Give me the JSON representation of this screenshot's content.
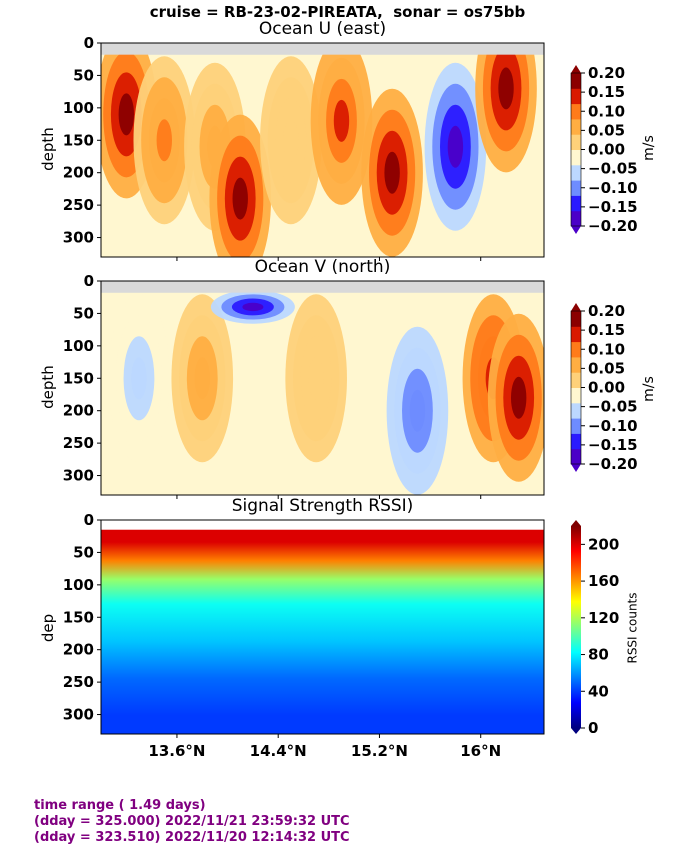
{
  "suptitle": "cruise = RB-23-02-PIREATA,  sonar = os75bb",
  "footer": {
    "line1": "time range ( 1.49 days)",
    "line2": "(dday = 325.000) 2022/11/21 23:59:32 UTC",
    "line3": "(dday = 323.510) 2022/11/20 12:14:32 UTC"
  },
  "colors": {
    "velocity_scale": [
      "#4b00c8",
      "#2a1aff",
      "#6e8cff",
      "#bcd8ff",
      "#fff7d0",
      "#fed17a",
      "#ffae42",
      "#ff7b1a",
      "#d91a00",
      "#8b0000"
    ],
    "no_data": "#d9d9d9"
  },
  "chart_data": [
    {
      "type": "heatmap",
      "title": "Ocean U (east)",
      "ylabel": "depth",
      "xlabel": "",
      "x_ticks": [
        "13.6°N",
        "14.4°N",
        "15.2°N",
        "16°N"
      ],
      "x_tick_values": [
        13.6,
        14.4,
        15.2,
        16.0
      ],
      "xlim": [
        13.0,
        16.5
      ],
      "y_ticks": [
        "0",
        "50",
        "100",
        "150",
        "200",
        "250",
        "300"
      ],
      "ylim": [
        330,
        0
      ],
      "colorbar": {
        "label": "m/s",
        "ticks": [
          "0.20",
          "0.15",
          "0.10",
          "0.05",
          "0.00",
          "−0.05",
          "−0.10",
          "−0.15",
          "−0.20"
        ],
        "range": [
          -0.2,
          0.2
        ]
      },
      "features": [
        {
          "x": 13.2,
          "y": 110,
          "value": 0.18
        },
        {
          "x": 13.5,
          "y": 150,
          "value": 0.08
        },
        {
          "x": 13.9,
          "y": 160,
          "value": 0.06
        },
        {
          "x": 14.1,
          "y": 240,
          "value": 0.16
        },
        {
          "x": 14.5,
          "y": 150,
          "value": 0.01
        },
        {
          "x": 14.9,
          "y": 120,
          "value": 0.13
        },
        {
          "x": 15.3,
          "y": 200,
          "value": 0.18
        },
        {
          "x": 15.8,
          "y": 160,
          "value": -0.19
        },
        {
          "x": 16.2,
          "y": 70,
          "value": 0.16
        }
      ]
    },
    {
      "type": "heatmap",
      "title": "Ocean V (north)",
      "ylabel": "depth",
      "xlabel": "",
      "x_ticks": [
        "13.6°N",
        "14.4°N",
        "15.2°N",
        "16°N"
      ],
      "x_tick_values": [
        13.6,
        14.4,
        15.2,
        16.0
      ],
      "xlim": [
        13.0,
        16.5
      ],
      "y_ticks": [
        "0",
        "50",
        "100",
        "150",
        "200",
        "250",
        "300"
      ],
      "ylim": [
        330,
        0
      ],
      "colorbar": {
        "label": "m/s",
        "ticks": [
          "0.20",
          "0.15",
          "0.10",
          "0.05",
          "0.00",
          "−0.05",
          "−0.10",
          "−0.15",
          "−0.20"
        ],
        "range": [
          -0.2,
          0.2
        ]
      },
      "features": [
        {
          "x": 13.3,
          "y": 150,
          "value": -0.06
        },
        {
          "x": 13.8,
          "y": 150,
          "value": 0.06
        },
        {
          "x": 14.2,
          "y": 40,
          "value": -0.18
        },
        {
          "x": 14.7,
          "y": 150,
          "value": 0.01
        },
        {
          "x": 15.5,
          "y": 200,
          "value": -0.12
        },
        {
          "x": 16.1,
          "y": 150,
          "value": 0.15
        },
        {
          "x": 16.3,
          "y": 180,
          "value": 0.19
        }
      ]
    },
    {
      "type": "heatmap",
      "title": "Signal Strength RSSI)",
      "ylabel": "dep",
      "xlabel": "",
      "x_ticks": [
        "13.6°N",
        "14.4°N",
        "15.2°N",
        "16°N"
      ],
      "x_tick_values": [
        13.6,
        14.4,
        15.2,
        16.0
      ],
      "xlim": [
        13.0,
        16.5
      ],
      "y_ticks": [
        "0",
        "50",
        "100",
        "150",
        "200",
        "250",
        "300"
      ],
      "ylim": [
        330,
        0
      ],
      "colorbar": {
        "label": "RSSI counts",
        "ticks": [
          "200",
          "160",
          "120",
          "80",
          "40",
          "0"
        ],
        "range": [
          0,
          220
        ]
      },
      "profile": [
        {
          "depth": 20,
          "value": 200
        },
        {
          "depth": 50,
          "value": 165
        },
        {
          "depth": 80,
          "value": 115
        },
        {
          "depth": 120,
          "value": 85
        },
        {
          "depth": 180,
          "value": 70
        },
        {
          "depth": 240,
          "value": 50
        },
        {
          "depth": 300,
          "value": 40
        }
      ]
    }
  ]
}
